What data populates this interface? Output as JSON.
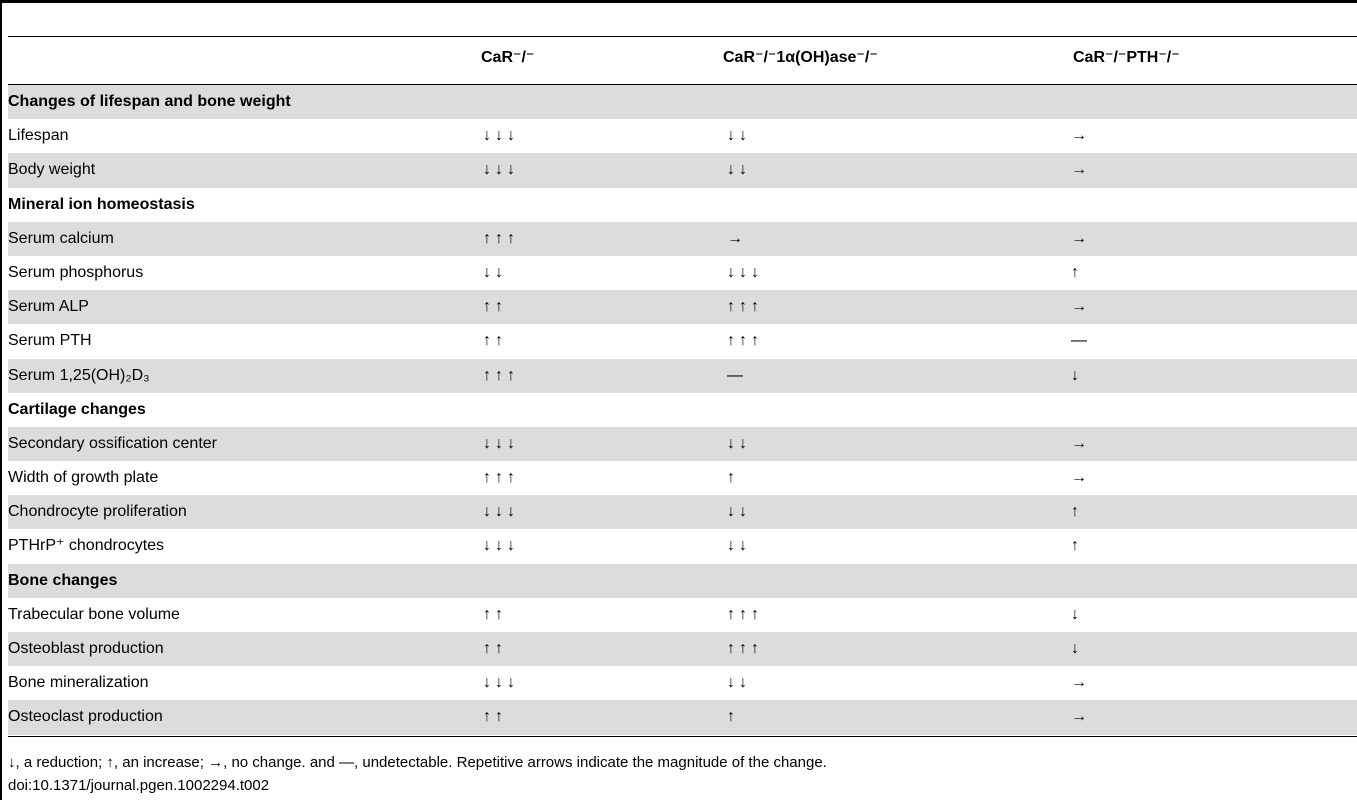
{
  "header": {
    "col1": "CaR⁻/⁻",
    "col2": "CaR⁻/⁻1α(OH)ase⁻/⁻",
    "col3": "CaR⁻/⁻PTH⁻/⁻"
  },
  "rows": [
    {
      "label": "Changes of lifespan and bone weight",
      "section": true
    },
    {
      "label": "Lifespan",
      "c1": "↓↓↓",
      "c2": "↓↓",
      "c3": "→"
    },
    {
      "label": "Body weight",
      "c1": "↓↓↓",
      "c2": "↓↓",
      "c3": "→"
    },
    {
      "label": "Mineral ion homeostasis",
      "section": true
    },
    {
      "label": "Serum calcium",
      "c1": "↑↑↑",
      "c2": "→",
      "c3": "→"
    },
    {
      "label": "Serum phosphorus",
      "c1": "↓↓",
      "c2": "↓↓↓",
      "c3": "↑"
    },
    {
      "label": "Serum ALP",
      "c1": "↑↑",
      "c2": "↑↑↑",
      "c3": "→"
    },
    {
      "label": "Serum PTH",
      "c1": "↑↑",
      "c2": "↑↑↑",
      "c3": "—"
    },
    {
      "label": "Serum 1,25(OH)₂D₃",
      "c1": "↑↑↑",
      "c2": "—",
      "c3": "↓"
    },
    {
      "label": "Cartilage changes",
      "section": true
    },
    {
      "label": "Secondary ossification center",
      "c1": "↓↓↓",
      "c2": "↓↓",
      "c3": "→"
    },
    {
      "label": "Width of growth plate",
      "c1": "↑↑↑",
      "c2": "↑",
      "c3": "→"
    },
    {
      "label": "Chondrocyte proliferation",
      "c1": "↓↓↓",
      "c2": "↓↓",
      "c3": "↑"
    },
    {
      "label": "PTHrP⁺ chondrocytes",
      "c1": "↓↓↓",
      "c2": "↓↓",
      "c3": "↑"
    },
    {
      "label": "Bone changes",
      "section": true
    },
    {
      "label": "Trabecular bone volume",
      "c1": "↑↑",
      "c2": "↑↑↑",
      "c3": "↓"
    },
    {
      "label": "Osteoblast production",
      "c1": "↑↑",
      "c2": "↑↑↑",
      "c3": "↓"
    },
    {
      "label": "Bone mineralization",
      "c1": "↓↓↓",
      "c2": "↓↓",
      "c3": "→"
    },
    {
      "label": "Osteoclast production",
      "c1": "↑↑",
      "c2": "↑",
      "c3": "→"
    }
  ],
  "footnote": "↓, a reduction; ↑, an increase; →, no change. and —, undetectable. Repetitive arrows indicate the magnitude of the change.",
  "doi": "doi:10.1371/journal.pgen.1002294.t002",
  "colors": {
    "shade": "#dcdcdc",
    "rule": "#000000"
  }
}
